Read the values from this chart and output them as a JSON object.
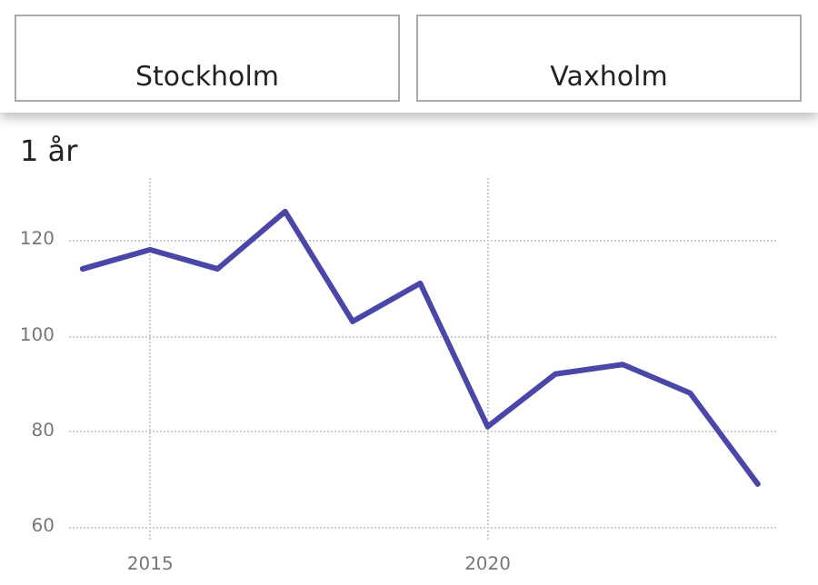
{
  "chart_data": {
    "type": "line",
    "title": "1 år",
    "annotations": [
      "Stockholm",
      "Vaxholm"
    ],
    "x": [
      2014,
      2015,
      2016,
      2017,
      2018,
      2019,
      2020,
      2021,
      2022,
      2023,
      2024
    ],
    "series": [
      {
        "color": "#4b47a8",
        "values": [
          114,
          118,
          114,
          126,
          103,
          111,
          81,
          92,
          94,
          88,
          69
        ]
      }
    ],
    "xlim": [
      2013.8,
      2024.3
    ],
    "xticks": [
      2015,
      2020
    ],
    "ylim": [
      57,
      133
    ],
    "yticks": [
      60,
      80,
      100,
      120
    ],
    "grid": true,
    "marker": "none",
    "line_style": "solid"
  }
}
